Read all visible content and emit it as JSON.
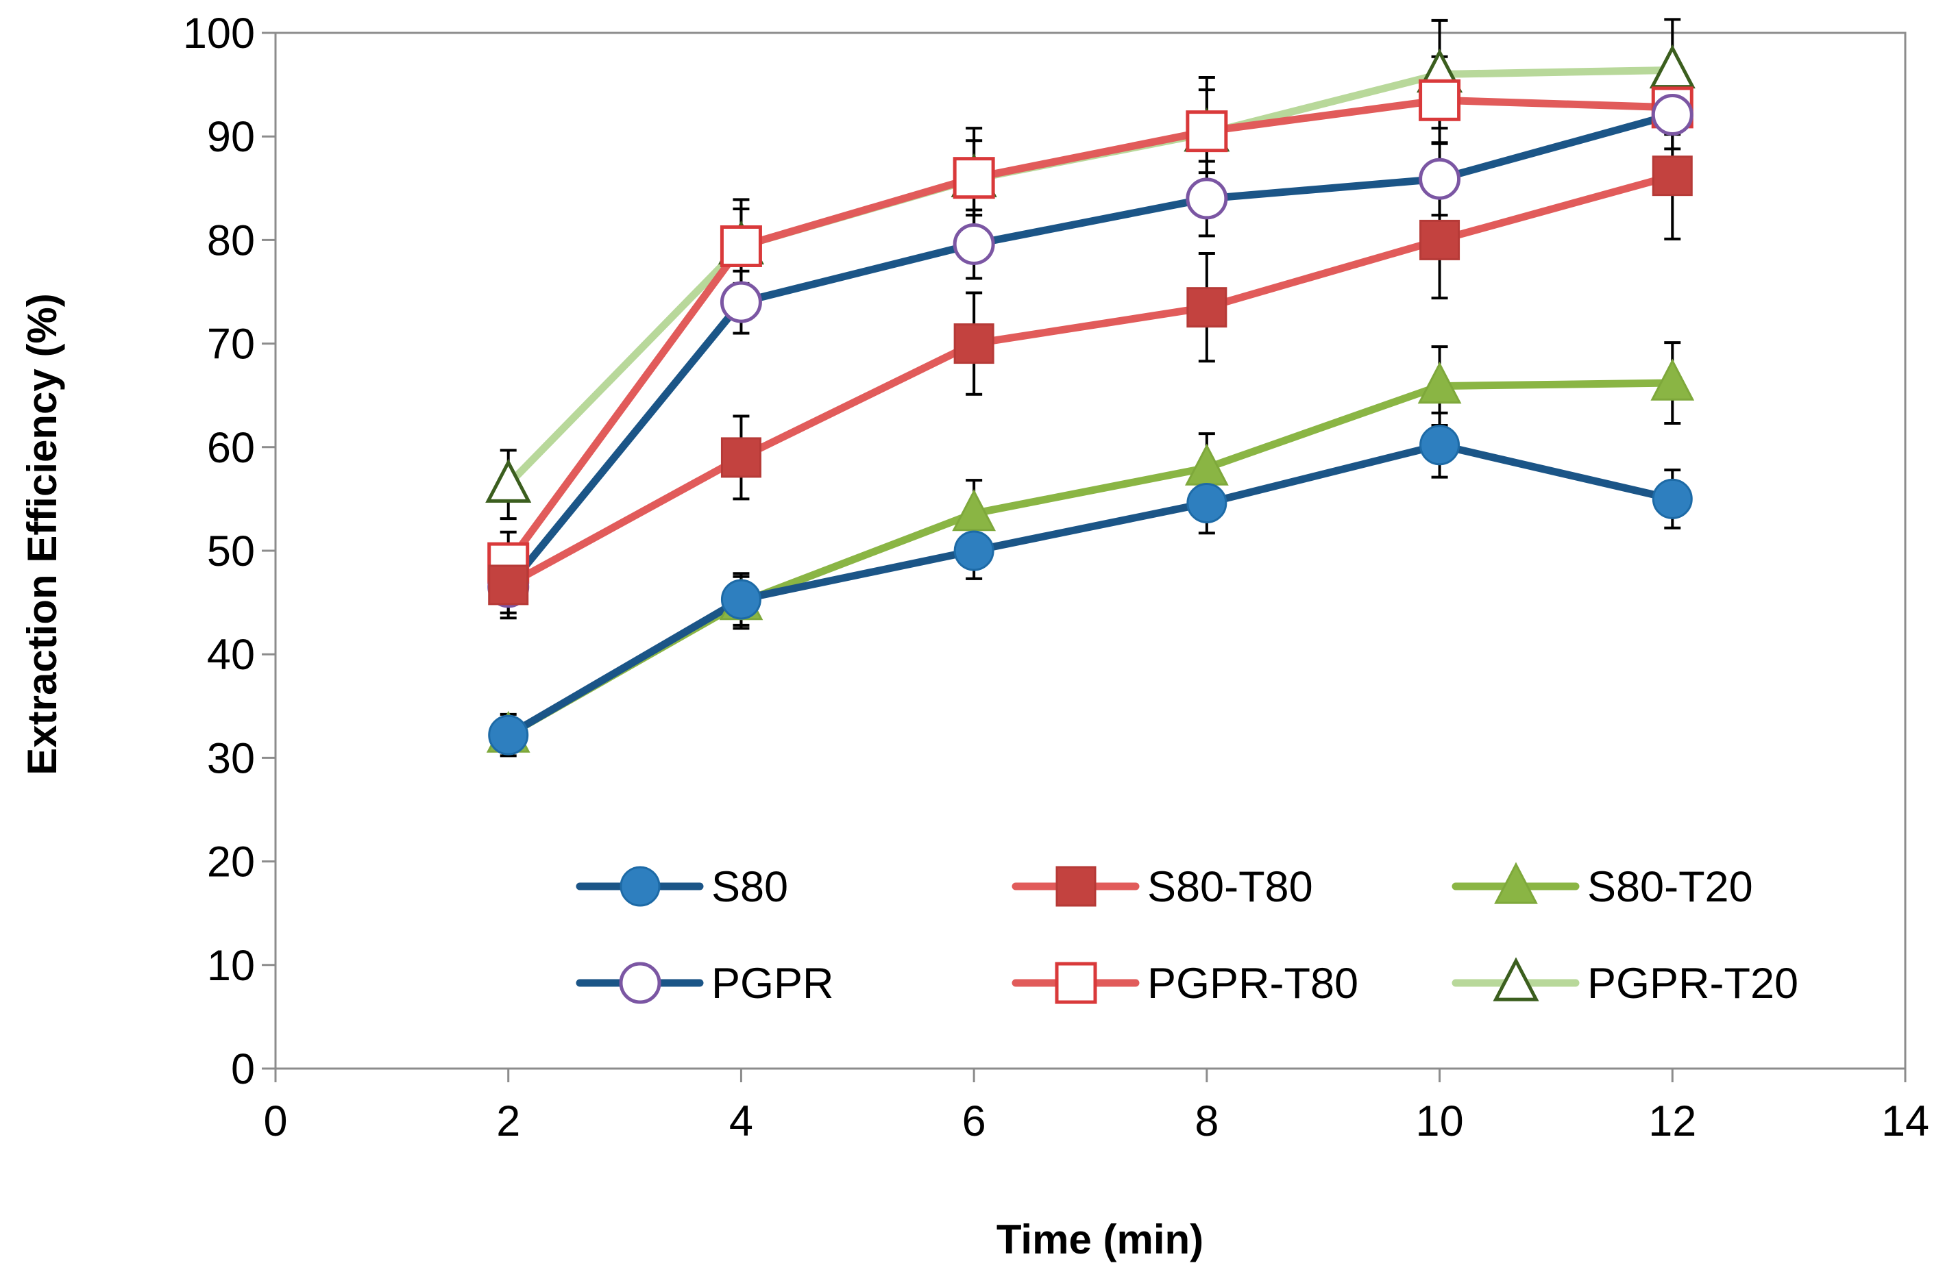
{
  "chart_data": {
    "type": "line",
    "title": "",
    "xlabel": "Time (min)",
    "ylabel": "Extraction Efficiency (%)",
    "xlim": [
      0,
      14
    ],
    "ylim": [
      0,
      100
    ],
    "xticks": [
      0,
      2,
      4,
      6,
      8,
      10,
      12,
      14
    ],
    "yticks": [
      0,
      10,
      20,
      30,
      40,
      50,
      60,
      70,
      80,
      90,
      100
    ],
    "grid": false,
    "legend_position": "lower-center-inside",
    "x": [
      2,
      4,
      6,
      8,
      10,
      12
    ],
    "series": [
      {
        "name": "S80",
        "values": [
          32.2,
          45.3,
          50.0,
          54.6,
          60.2,
          55.0
        ],
        "errors": [
          2.0,
          2.5,
          2.7,
          2.9,
          3.1,
          2.8
        ],
        "color": "#1b5587",
        "marker": "circle",
        "marker_fill": "#2e7fbf",
        "marker_stroke": "#1d6aa6",
        "filled": true
      },
      {
        "name": "S80-T80",
        "values": [
          46.7,
          59.0,
          70.0,
          73.5,
          80.0,
          86.2
        ],
        "errors": [
          3.2,
          4.0,
          4.9,
          5.2,
          5.6,
          6.1
        ],
        "color": "#e15b5a",
        "marker": "square",
        "marker_fill": "#c3423f",
        "marker_stroke": "#b63a37",
        "filled": true
      },
      {
        "name": "S80-T20",
        "values": [
          32.2,
          45.0,
          53.6,
          58.0,
          65.9,
          66.2
        ],
        "errors": [
          1.5,
          2.5,
          3.2,
          3.3,
          3.8,
          3.9
        ],
        "color": "#8ab544",
        "marker": "triangle",
        "marker_fill": "#8ab544",
        "marker_stroke": "#7ea83b",
        "filled": true
      },
      {
        "name": "PGPR",
        "values": [
          46.5,
          74.0,
          79.6,
          84.0,
          85.9,
          92.1
        ],
        "errors": [
          2.5,
          3.0,
          3.3,
          3.6,
          3.5,
          3.3
        ],
        "color": "#1b5587",
        "marker": "circle",
        "marker_fill": "#ffffff",
        "marker_stroke": "#7b56a3",
        "filled": false
      },
      {
        "name": "PGPR-T80",
        "values": [
          48.8,
          79.4,
          86.0,
          90.5,
          93.5,
          92.8
        ],
        "errors": [
          3.0,
          3.6,
          3.6,
          4.0,
          4.2,
          2.6
        ],
        "color": "#e15b5a",
        "marker": "square",
        "marker_fill": "#ffffff",
        "marker_stroke": "#d9393a",
        "filled": false
      },
      {
        "name": "PGPR-T20",
        "values": [
          56.4,
          79.4,
          85.9,
          90.3,
          96.0,
          96.4
        ],
        "errors": [
          3.3,
          4.5,
          4.9,
          5.4,
          5.2,
          4.9
        ],
        "color": "#b8d89a",
        "marker": "triangle",
        "marker_fill": "#ffffff",
        "marker_stroke": "#3b5e1e",
        "filled": false
      }
    ]
  }
}
